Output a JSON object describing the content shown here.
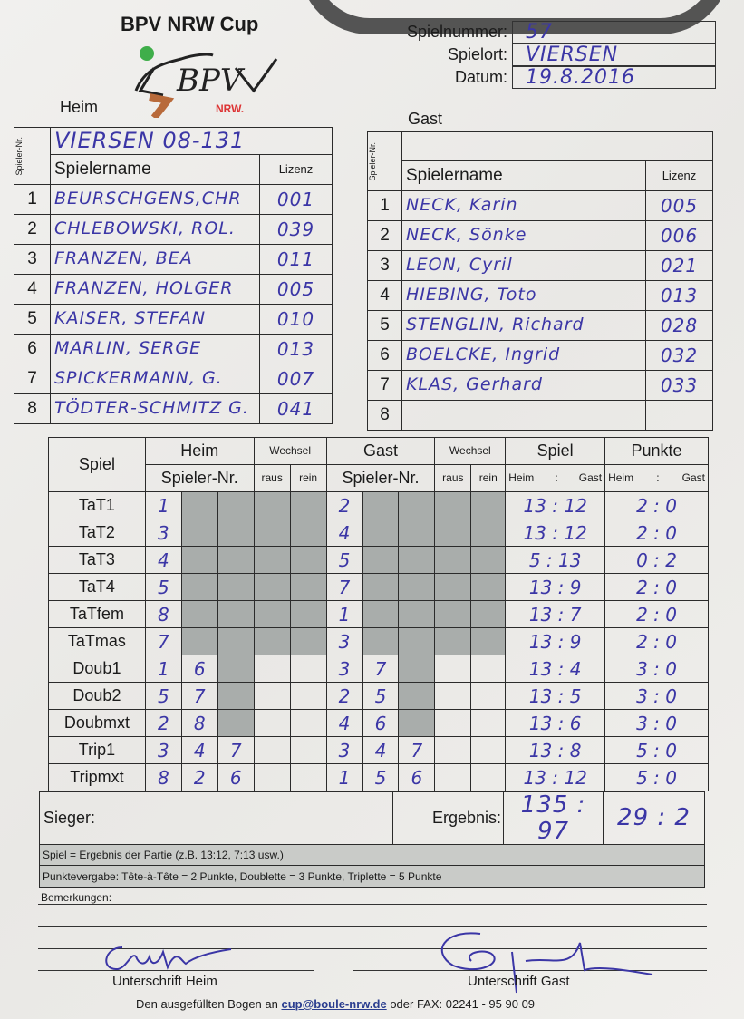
{
  "header": {
    "title": "BPV NRW Cup",
    "logo_text": "BPV",
    "logo_sub": "NRW.",
    "fields": [
      {
        "label": "Spielnummer:",
        "value": "57"
      },
      {
        "label": "Spielort:",
        "value": "VIERSEN"
      },
      {
        "label": "Datum:",
        "value": "19.8.2016"
      }
    ]
  },
  "home": {
    "label": "Heim",
    "team": "VIERSEN 08-131",
    "nr_label": "Spieler-Nr.",
    "name_label": "Spielername",
    "license_label": "Lizenz",
    "players": [
      {
        "nr": "1",
        "name": "BEURSCHGENS,CHR",
        "license": "001"
      },
      {
        "nr": "2",
        "name": "CHLEBOWSKI, ROL.",
        "license": "039"
      },
      {
        "nr": "3",
        "name": "FRANZEN, BEA",
        "license": "011"
      },
      {
        "nr": "4",
        "name": "FRANZEN, HOLGER",
        "license": "005"
      },
      {
        "nr": "5",
        "name": "KAISER, STEFAN",
        "license": "010"
      },
      {
        "nr": "6",
        "name": "MARLIN, SERGE",
        "license": "013"
      },
      {
        "nr": "7",
        "name": "SPICKERMANN, G.",
        "license": "007"
      },
      {
        "nr": "8",
        "name": "TÖDTER-SCHMITZ G.",
        "license": "041"
      }
    ]
  },
  "guest": {
    "label": "Gast",
    "team": "",
    "nr_label": "Spieler-Nr.",
    "name_label": "Spielername",
    "license_label": "Lizenz",
    "players": [
      {
        "nr": "1",
        "name": "NECK, Karin",
        "license": "005"
      },
      {
        "nr": "2",
        "name": "NECK, Sönke",
        "license": "006"
      },
      {
        "nr": "3",
        "name": "LEON, Cyril",
        "license": "021"
      },
      {
        "nr": "4",
        "name": "HIEBING, Toto",
        "license": "013"
      },
      {
        "nr": "5",
        "name": "STENGLIN, Richard",
        "license": "028"
      },
      {
        "nr": "6",
        "name": "BOELCKE, Ingrid",
        "license": "032"
      },
      {
        "nr": "7",
        "name": "KLAS, Gerhard",
        "license": "033"
      },
      {
        "nr": "8",
        "name": "",
        "license": ""
      }
    ]
  },
  "games": {
    "headers": {
      "spiel": "Spiel",
      "heim": "Heim",
      "gast": "Gast",
      "wechsel": "Wechsel",
      "spieler_nr": "Spieler-Nr.",
      "raus": "raus",
      "rein": "rein",
      "spiel_col": "Spiel",
      "punkte": "Punkte",
      "sub_heim": "Heim",
      "sub_sep": ":",
      "sub_gast": "Gast"
    },
    "rows": [
      {
        "game": "TaT1",
        "home": [
          "1"
        ],
        "guest": [
          "2"
        ],
        "score": "13 : 12",
        "points": "2 : 0"
      },
      {
        "game": "TaT2",
        "home": [
          "3"
        ],
        "guest": [
          "4"
        ],
        "score": "13 : 12",
        "points": "2 : 0"
      },
      {
        "game": "TaT3",
        "home": [
          "4"
        ],
        "guest": [
          "5"
        ],
        "score": "5 : 13",
        "points": "0 : 2"
      },
      {
        "game": "TaT4",
        "home": [
          "5"
        ],
        "guest": [
          "7"
        ],
        "score": "13 : 9",
        "points": "2 : 0"
      },
      {
        "game": "TaTfem",
        "home": [
          "8"
        ],
        "guest": [
          "1"
        ],
        "score": "13 : 7",
        "points": "2 : 0"
      },
      {
        "game": "TaTmas",
        "home": [
          "7"
        ],
        "guest": [
          "3"
        ],
        "score": "13 : 9",
        "points": "2 : 0"
      },
      {
        "game": "Doub1",
        "home": [
          "1",
          "6"
        ],
        "guest": [
          "3",
          "7"
        ],
        "score": "13 : 4",
        "points": "3 : 0"
      },
      {
        "game": "Doub2",
        "home": [
          "5",
          "7"
        ],
        "guest": [
          "2",
          "5"
        ],
        "score": "13 : 5",
        "points": "3 : 0"
      },
      {
        "game": "Doubmxt",
        "home": [
          "2",
          "8"
        ],
        "guest": [
          "4",
          "6"
        ],
        "score": "13 : 6",
        "points": "3 : 0"
      },
      {
        "game": "Trip1",
        "home": [
          "3",
          "4",
          "7"
        ],
        "guest": [
          "3",
          "4",
          "7"
        ],
        "score": "13 : 8",
        "points": "5 : 0"
      },
      {
        "game": "Tripmxt",
        "home": [
          "8",
          "2",
          "6"
        ],
        "guest": [
          "1",
          "5",
          "6"
        ],
        "score": "13 : 12",
        "points": "5 : 0"
      }
    ],
    "winner_label": "Sieger:",
    "result_label": "Ergebnis:",
    "result_score": "135 : 97",
    "result_points": "29 : 2",
    "note1": "Spiel = Ergebnis der Partie (z.B. 13:12, 7:13 usw.)",
    "note2": "Punktevergabe: Tête-à-Tête = 2 Punkte, Doublette = 3 Punkte, Triplette = 5 Punkte"
  },
  "footer": {
    "remarks_label": "Bemerkungen:",
    "sign_home": "Unterschrift Heim",
    "sign_guest": "Unterschrift Gast",
    "send_text": "Den ausgefüllten Bogen an",
    "email": "cup@boule-nrw.de",
    "fax_text": "oder FAX: 02241 - 95 90 09"
  },
  "colors": {
    "ink": "#3b36a6",
    "shade": "#a9adab",
    "logo_green": "#3fae4a",
    "logo_brown": "#b86a3a"
  }
}
